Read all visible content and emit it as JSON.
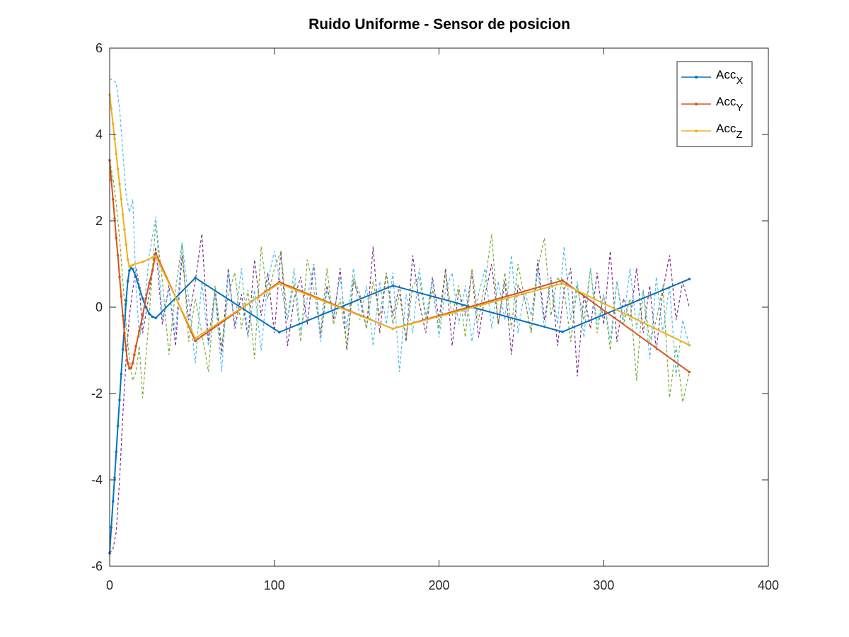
{
  "chart_data": {
    "type": "line",
    "title": "Ruido Uniforme - Sensor de posicion",
    "xlabel": "",
    "ylabel": "",
    "xlim": [
      0,
      400
    ],
    "ylim": [
      -6,
      6
    ],
    "xticks": [
      0,
      100,
      200,
      300,
      400
    ],
    "yticks": [
      -6,
      -4,
      -2,
      0,
      2,
      4,
      6
    ],
    "grid": false,
    "legend_position": "top-right",
    "series": [
      {
        "name": "Acc",
        "subscript": "X",
        "color": "#0072BD",
        "style": "solid-dot",
        "x": [
          0,
          1,
          2,
          3,
          4,
          5,
          6,
          7,
          8,
          9,
          10,
          11,
          12,
          13,
          14,
          16,
          18,
          20,
          22,
          24,
          26,
          28,
          52,
          103,
          172,
          275,
          352
        ],
        "y": [
          -5.7,
          -5.1,
          -4.5,
          -3.95,
          -3.35,
          -2.75,
          -2.15,
          -1.55,
          -0.98,
          -0.45,
          0.15,
          0.6,
          0.85,
          0.92,
          0.88,
          0.7,
          0.45,
          0.2,
          0.0,
          -0.15,
          -0.22,
          -0.25,
          0.68,
          -0.58,
          0.5,
          -0.57,
          0.65
        ]
      },
      {
        "name": "Acc",
        "subscript": "Y",
        "color": "#D95319",
        "style": "solid-dot",
        "x": [
          0,
          1,
          2,
          3,
          4,
          5,
          6,
          7,
          8,
          9,
          10,
          11,
          12,
          13,
          14,
          15,
          16,
          18,
          20,
          22,
          24,
          26,
          28,
          52,
          103,
          172,
          275,
          352
        ],
        "y": [
          3.4,
          2.95,
          2.5,
          2.05,
          1.6,
          1.2,
          0.7,
          0.25,
          -0.2,
          -0.6,
          -1.0,
          -1.3,
          -1.42,
          -1.4,
          -1.3,
          -1.1,
          -0.9,
          -0.55,
          -0.2,
          0.2,
          0.55,
          0.85,
          1.25,
          -0.78,
          0.58,
          -0.5,
          0.62,
          -1.5
        ]
      },
      {
        "name": "Acc",
        "subscript": "Z",
        "color": "#EDB120",
        "style": "solid-dot",
        "x": [
          0,
          1,
          2,
          3,
          4,
          5,
          6,
          7,
          8,
          9,
          10,
          11,
          12,
          13,
          14,
          20,
          26,
          28,
          52,
          103,
          172,
          275,
          352
        ],
        "y": [
          4.92,
          4.6,
          4.25,
          3.9,
          3.55,
          3.2,
          2.85,
          2.5,
          2.15,
          1.8,
          1.45,
          1.1,
          0.95,
          0.95,
          0.98,
          1.05,
          1.15,
          1.18,
          -0.72,
          0.55,
          -0.5,
          0.55,
          -0.88
        ]
      }
    ],
    "noise_series": [
      {
        "color": "#7E2F8E",
        "style": "dashed",
        "x": [
          0,
          2,
          4,
          6,
          8,
          10,
          12,
          14,
          16,
          18,
          20,
          24,
          28,
          32,
          36,
          40,
          44,
          48,
          52,
          56,
          60,
          64,
          68,
          72,
          76,
          80,
          84,
          88,
          92,
          96,
          100,
          104,
          108,
          112,
          116,
          120,
          124,
          128,
          132,
          136,
          140,
          144,
          148,
          152,
          156,
          160,
          164,
          168,
          172,
          176,
          180,
          184,
          188,
          192,
          196,
          200,
          204,
          208,
          212,
          216,
          220,
          224,
          228,
          232,
          236,
          240,
          244,
          248,
          252,
          256,
          260,
          264,
          268,
          272,
          276,
          280,
          284,
          288,
          292,
          296,
          300,
          304,
          308,
          312,
          316,
          320,
          324,
          328,
          332,
          336,
          340,
          344,
          348,
          352
        ],
        "y": [
          -5.7,
          -5.6,
          -5.2,
          -4.0,
          -2.5,
          -1.2,
          -0.2,
          0.4,
          0.9,
          0.5,
          -0.6,
          0.3,
          1.4,
          -0.4,
          0.5,
          -0.9,
          1.2,
          -0.3,
          0.6,
          1.7,
          -0.8,
          0.4,
          -1.1,
          0.9,
          -0.5,
          0.3,
          -0.7,
          1.1,
          -0.2,
          0.8,
          -0.6,
          1.3,
          -0.9,
          0.2,
          0.7,
          -0.4,
          1.0,
          -0.7,
          0.5,
          -0.3,
          0.9,
          -1.0,
          0.6,
          0.2,
          -0.5,
          1.4,
          -0.6,
          0.8,
          -0.2,
          0.5,
          -0.8,
          1.2,
          0.1,
          -0.6,
          0.7,
          -0.3,
          0.9,
          -0.9,
          0.4,
          -0.2,
          0.8,
          -0.7,
          0.3,
          1.0,
          -0.4,
          0.6,
          -1.1,
          0.5,
          0.2,
          -0.6,
          1.1,
          -0.3,
          0.7,
          -0.9,
          0.4,
          0.9,
          -1.6,
          0.3,
          -0.5,
          0.8,
          -0.4,
          1.3,
          -0.8,
          0.2,
          -0.3,
          0.9,
          -0.6,
          0.5,
          -1.0,
          0.4,
          1.2,
          -0.3,
          0.6,
          0.0
        ]
      },
      {
        "color": "#77AC30",
        "style": "dashed",
        "x": [
          0,
          2,
          4,
          6,
          8,
          10,
          12,
          14,
          16,
          18,
          20,
          24,
          28,
          32,
          36,
          40,
          44,
          48,
          52,
          56,
          60,
          64,
          68,
          72,
          76,
          80,
          84,
          88,
          92,
          96,
          100,
          104,
          108,
          112,
          116,
          120,
          124,
          128,
          132,
          136,
          140,
          144,
          148,
          152,
          156,
          160,
          164,
          168,
          172,
          176,
          180,
          184,
          188,
          192,
          196,
          200,
          204,
          208,
          212,
          216,
          220,
          224,
          228,
          232,
          236,
          240,
          244,
          248,
          252,
          256,
          260,
          264,
          268,
          272,
          276,
          280,
          284,
          288,
          292,
          296,
          300,
          304,
          308,
          312,
          316,
          320,
          324,
          328,
          332,
          336,
          340,
          344,
          348,
          352
        ],
        "y": [
          3.4,
          3.0,
          2.4,
          1.6,
          0.6,
          -0.4,
          -1.2,
          -1.7,
          -1.5,
          -0.9,
          -2.1,
          -0.2,
          2.0,
          0.6,
          -1.1,
          0.4,
          1.5,
          -0.8,
          0.2,
          -0.6,
          -1.5,
          0.5,
          -0.9,
          0.3,
          0.8,
          -0.5,
          0.4,
          -1.2,
          1.4,
          0.2,
          0.9,
          1.3,
          -0.3,
          0.6,
          -0.8,
          1.1,
          0.4,
          -0.6,
          0.9,
          -0.4,
          0.2,
          -0.9,
          0.7,
          0.3,
          -0.5,
          0.6,
          -0.2,
          0.8,
          -0.4,
          0.3,
          -0.7,
          0.5,
          0.7,
          -0.3,
          0.4,
          -0.5,
          0.8,
          -0.2,
          0.5,
          -0.7,
          0.9,
          -0.3,
          0.6,
          1.7,
          -0.4,
          0.8,
          -0.5,
          1.0,
          0.2,
          -0.6,
          0.9,
          1.6,
          -0.2,
          0.7,
          0.4,
          -0.8,
          0.5,
          -0.3,
          0.9,
          -0.6,
          0.3,
          -1.0,
          0.6,
          -0.4,
          0.2,
          -1.7,
          0.4,
          -0.8,
          -0.3,
          0.5,
          -2.1,
          -0.9,
          -2.2,
          -1.5
        ]
      },
      {
        "color": "#4DBEEE",
        "style": "dashed",
        "x": [
          0,
          2,
          4,
          6,
          8,
          10,
          12,
          14,
          16,
          18,
          20,
          24,
          28,
          32,
          36,
          40,
          44,
          48,
          52,
          56,
          60,
          64,
          68,
          72,
          76,
          80,
          84,
          88,
          92,
          96,
          100,
          104,
          108,
          112,
          116,
          120,
          124,
          128,
          132,
          136,
          140,
          144,
          148,
          152,
          156,
          160,
          164,
          168,
          172,
          176,
          180,
          184,
          188,
          192,
          196,
          200,
          204,
          208,
          212,
          216,
          220,
          224,
          228,
          232,
          236,
          240,
          244,
          248,
          252,
          256,
          260,
          264,
          268,
          272,
          276,
          280,
          284,
          288,
          292,
          296,
          300,
          304,
          308,
          312,
          316,
          320,
          324,
          328,
          332,
          336,
          340,
          344,
          348,
          352
        ],
        "y": [
          5.3,
          5.25,
          5.2,
          4.6,
          3.6,
          2.6,
          2.2,
          2.5,
          0.5,
          -0.7,
          -0.4,
          1.2,
          2.1,
          -0.3,
          0.4,
          -0.6,
          1.5,
          0.2,
          -1.3,
          0.6,
          -0.9,
          0.3,
          -1.5,
          0.8,
          -0.4,
          0.9,
          -0.7,
          0.4,
          -1.0,
          0.6,
          1.3,
          0.5,
          -0.3,
          0.9,
          -0.6,
          0.2,
          1.0,
          -0.8,
          0.4,
          -0.2,
          0.7,
          -0.5,
          0.9,
          -0.3,
          0.5,
          -0.9,
          0.6,
          -0.4,
          0.8,
          -1.5,
          0.3,
          -0.6,
          0.9,
          -0.2,
          0.6,
          -0.7,
          0.4,
          0.8,
          -0.4,
          0.5,
          -0.8,
          0.3,
          0.9,
          -0.5,
          0.6,
          -0.3,
          1.2,
          -0.6,
          0.4,
          -0.2,
          0.9,
          -0.5,
          0.7,
          -0.4,
          1.4,
          -0.3,
          0.6,
          -0.7,
          0.9,
          -0.4,
          0.3,
          -0.8,
          0.6,
          -0.3,
          0.9,
          -0.5,
          0.4,
          -1.2,
          0.7,
          -0.6,
          0.5,
          -1.6,
          -0.3,
          -0.9
        ]
      }
    ]
  }
}
